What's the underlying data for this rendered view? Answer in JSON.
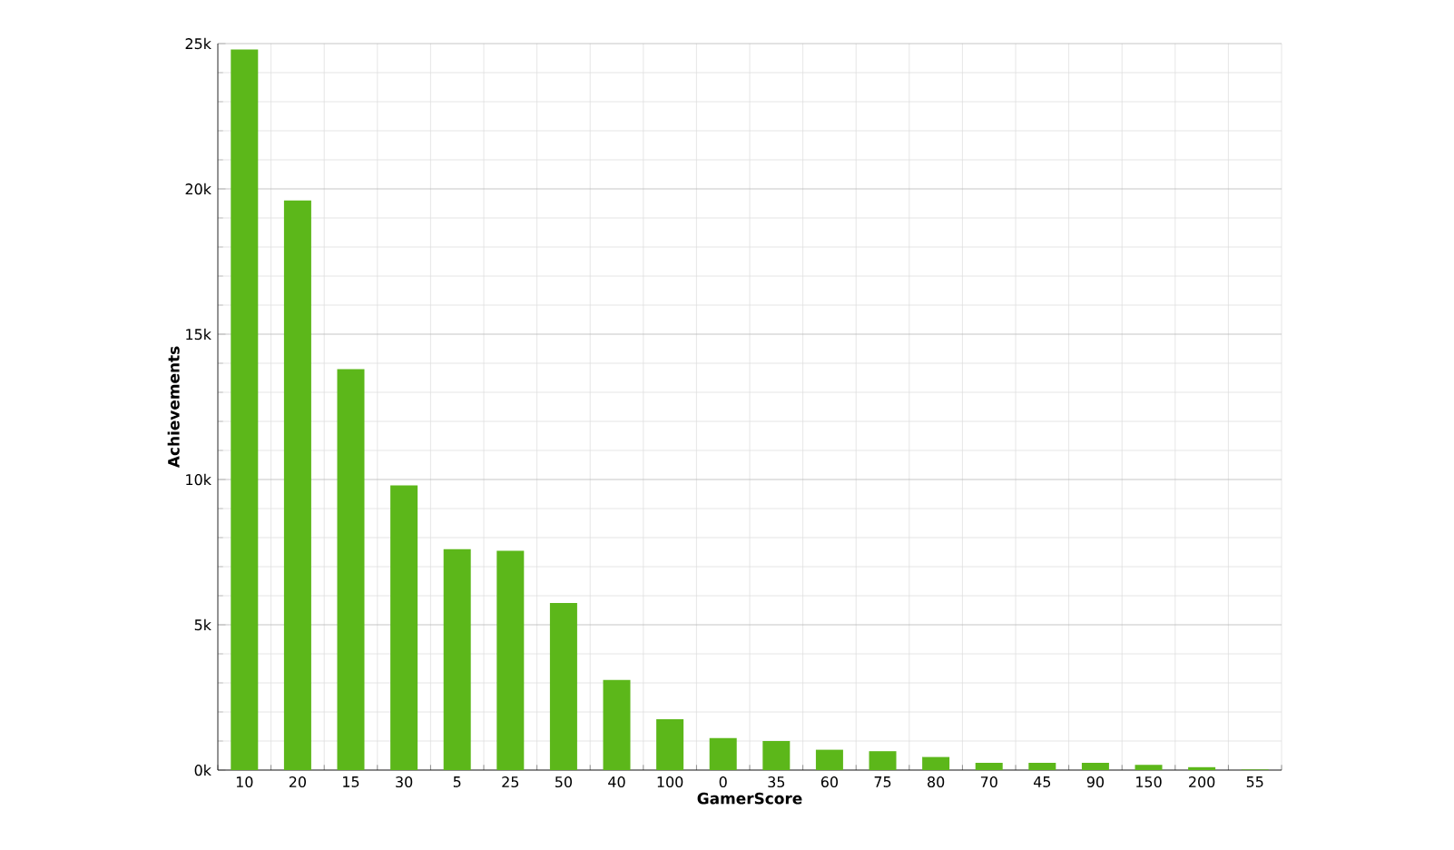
{
  "chart_data": {
    "type": "bar",
    "xlabel": "GamerScore",
    "ylabel": "Achievements",
    "categories": [
      "10",
      "20",
      "15",
      "30",
      "5",
      "25",
      "50",
      "40",
      "100",
      "0",
      "35",
      "60",
      "75",
      "80",
      "70",
      "45",
      "90",
      "150",
      "200",
      "55"
    ],
    "values": [
      24800,
      19600,
      13800,
      9800,
      7600,
      7550,
      5750,
      3100,
      1750,
      1100,
      1000,
      700,
      650,
      450,
      250,
      250,
      250,
      180,
      100,
      20
    ],
    "color": "#5cb71a",
    "ylim": [
      0,
      25000
    ],
    "yticks": [
      {
        "value": 0,
        "label": "0k"
      },
      {
        "value": 5000,
        "label": "5k"
      },
      {
        "value": 10000,
        "label": "10k"
      },
      {
        "value": 15000,
        "label": "15k"
      },
      {
        "value": 20000,
        "label": "20k"
      },
      {
        "value": 25000,
        "label": "25k"
      }
    ],
    "grid": true
  }
}
